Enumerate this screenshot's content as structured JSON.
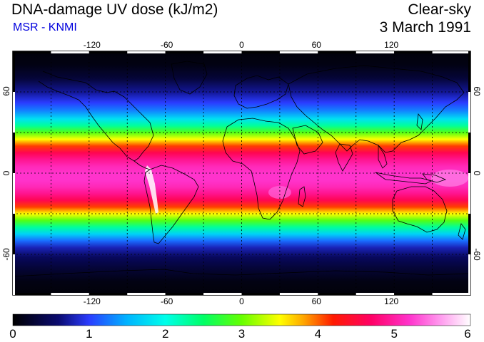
{
  "header": {
    "title": "DNA-damage UV dose (kJ/m2)",
    "subtitle": "MSR - KNMI",
    "condition": "Clear-sky",
    "date": "3 March 1991"
  },
  "colors": {
    "subtitle": "#0000dd",
    "frame": "#000000",
    "grid": "#000000",
    "coast": "#000000"
  },
  "map": {
    "lon_range": [
      -180,
      180
    ],
    "lat_range": [
      -90,
      90
    ],
    "lon_ticks": [
      -120,
      -60,
      0,
      60,
      120
    ],
    "lat_ticks": [
      60,
      0,
      -60
    ],
    "lon_labels": [
      "-120",
      "-60",
      "0",
      "60",
      "120"
    ],
    "lat_labels": [
      "60",
      "0",
      "-60"
    ],
    "grid_lons": [
      -150,
      -120,
      -90,
      -60,
      -30,
      0,
      30,
      60,
      90,
      120,
      150
    ],
    "grid_lats": [
      60,
      30,
      0,
      -30,
      -60
    ],
    "dose_profile": [
      [
        90,
        0.05
      ],
      [
        80,
        0.1
      ],
      [
        70,
        0.3
      ],
      [
        60,
        0.7
      ],
      [
        52,
        1.0
      ],
      [
        46,
        1.3
      ],
      [
        40,
        1.8
      ],
      [
        35,
        2.3
      ],
      [
        30,
        2.9
      ],
      [
        25,
        3.5
      ],
      [
        20,
        4.1
      ],
      [
        15,
        4.6
      ],
      [
        10,
        4.9
      ],
      [
        5,
        5.1
      ],
      [
        0,
        5.2
      ],
      [
        -5,
        5.2
      ],
      [
        -10,
        5.1
      ],
      [
        -15,
        4.9
      ],
      [
        -20,
        4.6
      ],
      [
        -25,
        4.1
      ],
      [
        -30,
        3.5
      ],
      [
        -35,
        2.9
      ],
      [
        -40,
        2.3
      ],
      [
        -45,
        1.7
      ],
      [
        -50,
        1.2
      ],
      [
        -55,
        0.8
      ],
      [
        -62,
        0.5
      ],
      [
        -70,
        0.3
      ],
      [
        -80,
        0.1
      ],
      [
        -90,
        0.05
      ]
    ]
  },
  "colorbar": {
    "min": 0,
    "max": 6,
    "labels": [
      "0",
      "1",
      "2",
      "3",
      "4",
      "5",
      "6"
    ],
    "stops": [
      [
        0.0,
        "#000000"
      ],
      [
        0.6,
        "#0a0a70"
      ],
      [
        1.0,
        "#2a3cff"
      ],
      [
        1.5,
        "#00b4ff"
      ],
      [
        2.0,
        "#00ffea"
      ],
      [
        2.5,
        "#00ff66"
      ],
      [
        3.0,
        "#66ff00"
      ],
      [
        3.5,
        "#ffff00"
      ],
      [
        3.8,
        "#ffaa00"
      ],
      [
        4.2,
        "#ff1a00"
      ],
      [
        4.7,
        "#ff0066"
      ],
      [
        5.2,
        "#ff33cc"
      ],
      [
        5.6,
        "#ff99ee"
      ],
      [
        6.0,
        "#ffffff"
      ]
    ]
  }
}
